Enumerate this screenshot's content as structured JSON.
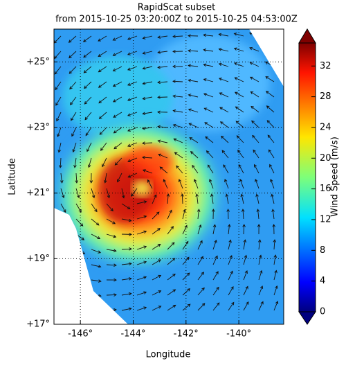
{
  "chart_data": {
    "type": "map",
    "title": "RapidScat subset",
    "subtitle": "from 2015-10-25 03:20:00Z to 2015-10-25 04:53:00Z",
    "x_label": "Longitude",
    "y_label": "Latitude",
    "xlim": [
      -147,
      -138.3
    ],
    "ylim": [
      17,
      26
    ],
    "xticks": [
      {
        "value": -146,
        "label": "-146°"
      },
      {
        "value": -144,
        "label": "-144°"
      },
      {
        "value": -142,
        "label": "-142°"
      },
      {
        "value": -140,
        "label": "-140°"
      }
    ],
    "yticks": [
      {
        "value": 17,
        "label": "+17°"
      },
      {
        "value": 19,
        "label": "+19°"
      },
      {
        "value": 21,
        "label": "+21°"
      },
      {
        "value": 23,
        "label": "+23°"
      },
      {
        "value": 25,
        "label": "+25°"
      }
    ],
    "grid": true,
    "colorbar": {
      "label": "Wind Speed (m/s)",
      "lim": [
        0,
        35
      ],
      "ticks": [
        0,
        4,
        8,
        12,
        16,
        20,
        24,
        28,
        32
      ]
    }
  }
}
